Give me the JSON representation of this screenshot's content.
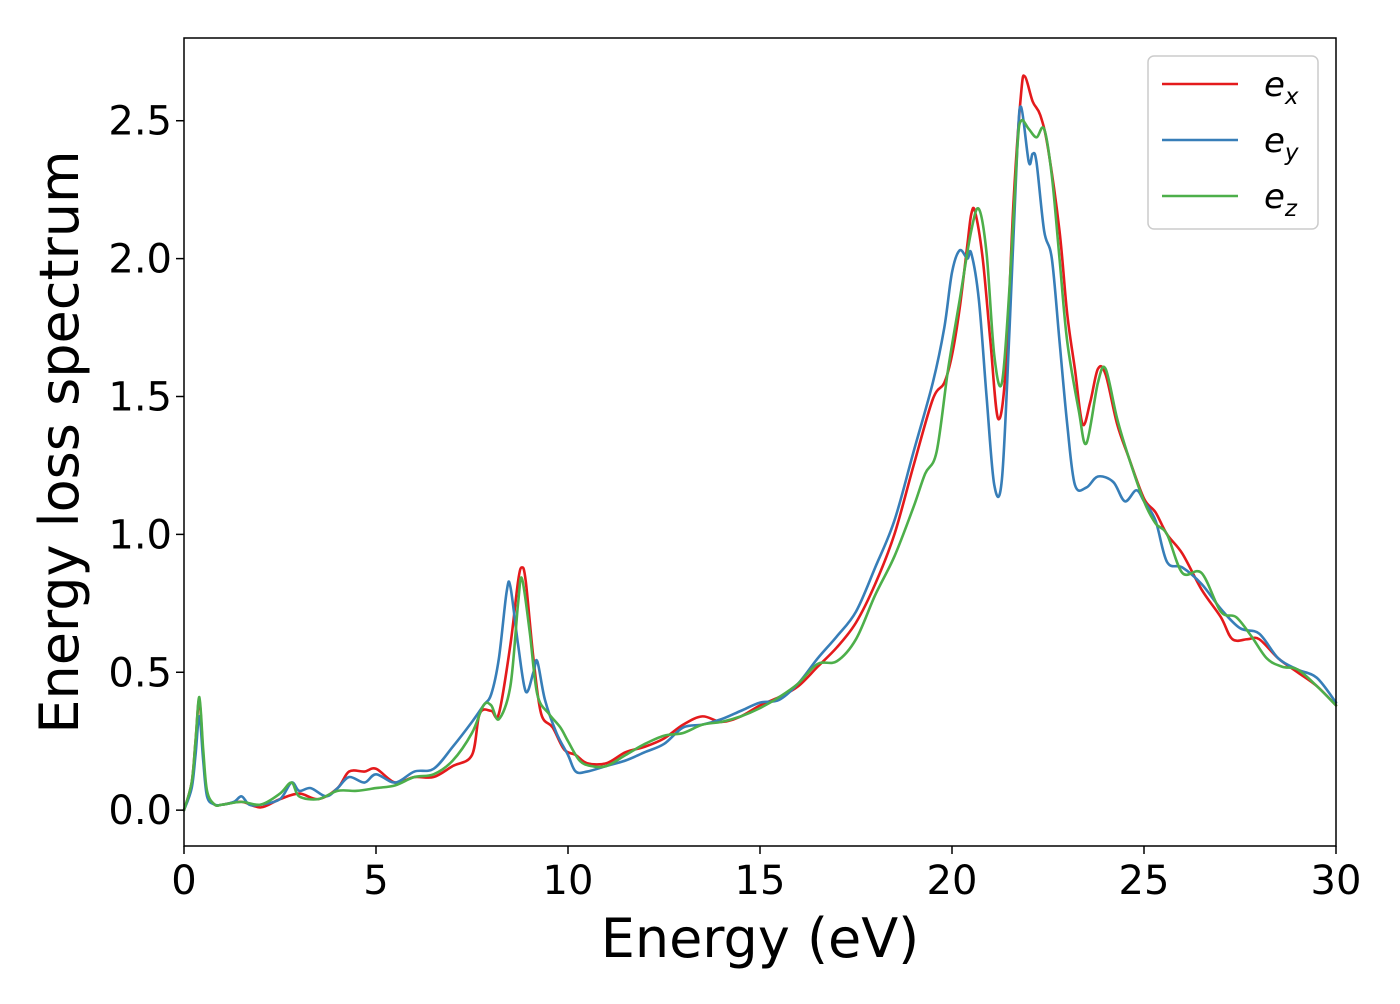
{
  "chart_data": {
    "type": "line",
    "title": "",
    "xlabel": "Energy (eV)",
    "ylabel": "Energy loss spectrum",
    "xlim": [
      0,
      30
    ],
    "ylim": [
      -0.13,
      2.8
    ],
    "xticks": [
      0,
      5,
      10,
      15,
      20,
      25,
      30
    ],
    "yticks": [
      0.0,
      0.5,
      1.0,
      1.5,
      2.0,
      2.5
    ],
    "xtick_labels": [
      "0",
      "5",
      "10",
      "15",
      "20",
      "25",
      "30"
    ],
    "ytick_labels": [
      "0.0",
      "0.5",
      "1.0",
      "1.5",
      "2.0",
      "2.5"
    ],
    "grid": false,
    "legend_position": "top-right",
    "series": [
      {
        "name": "e_x",
        "label_base": "e",
        "label_sub": "x",
        "color": "#e41a1c",
        "points": [
          [
            0.0,
            0.0
          ],
          [
            0.2,
            0.1
          ],
          [
            0.3,
            0.25
          ],
          [
            0.4,
            0.4
          ],
          [
            0.5,
            0.2
          ],
          [
            0.6,
            0.06
          ],
          [
            0.8,
            0.02
          ],
          [
            1.0,
            0.02
          ],
          [
            1.5,
            0.03
          ],
          [
            2.0,
            0.01
          ],
          [
            2.5,
            0.04
          ],
          [
            3.0,
            0.06
          ],
          [
            3.5,
            0.04
          ],
          [
            4.0,
            0.08
          ],
          [
            4.3,
            0.14
          ],
          [
            4.7,
            0.14
          ],
          [
            5.0,
            0.15
          ],
          [
            5.5,
            0.1
          ],
          [
            6.0,
            0.12
          ],
          [
            6.5,
            0.12
          ],
          [
            7.0,
            0.16
          ],
          [
            7.5,
            0.2
          ],
          [
            7.7,
            0.35
          ],
          [
            8.0,
            0.36
          ],
          [
            8.2,
            0.35
          ],
          [
            8.5,
            0.6
          ],
          [
            8.7,
            0.83
          ],
          [
            8.8,
            0.88
          ],
          [
            8.9,
            0.83
          ],
          [
            9.1,
            0.55
          ],
          [
            9.3,
            0.35
          ],
          [
            9.6,
            0.3
          ],
          [
            9.9,
            0.22
          ],
          [
            10.2,
            0.2
          ],
          [
            10.5,
            0.17
          ],
          [
            11.0,
            0.17
          ],
          [
            11.5,
            0.21
          ],
          [
            12.0,
            0.23
          ],
          [
            12.5,
            0.26
          ],
          [
            13.0,
            0.31
          ],
          [
            13.5,
            0.34
          ],
          [
            14.0,
            0.32
          ],
          [
            14.5,
            0.34
          ],
          [
            15.0,
            0.38
          ],
          [
            15.5,
            0.41
          ],
          [
            16.0,
            0.45
          ],
          [
            16.5,
            0.52
          ],
          [
            17.0,
            0.59
          ],
          [
            17.5,
            0.68
          ],
          [
            18.0,
            0.82
          ],
          [
            18.5,
            1.0
          ],
          [
            19.0,
            1.25
          ],
          [
            19.5,
            1.49
          ],
          [
            19.8,
            1.55
          ],
          [
            20.0,
            1.65
          ],
          [
            20.2,
            1.82
          ],
          [
            20.4,
            2.05
          ],
          [
            20.5,
            2.16
          ],
          [
            20.6,
            2.17
          ],
          [
            20.8,
            2.0
          ],
          [
            21.0,
            1.7
          ],
          [
            21.2,
            1.42
          ],
          [
            21.4,
            1.6
          ],
          [
            21.6,
            2.2
          ],
          [
            21.8,
            2.6
          ],
          [
            21.9,
            2.66
          ],
          [
            22.1,
            2.57
          ],
          [
            22.3,
            2.52
          ],
          [
            22.5,
            2.4
          ],
          [
            22.8,
            2.1
          ],
          [
            23.0,
            1.8
          ],
          [
            23.2,
            1.6
          ],
          [
            23.4,
            1.4
          ],
          [
            23.6,
            1.48
          ],
          [
            23.8,
            1.6
          ],
          [
            24.0,
            1.58
          ],
          [
            24.3,
            1.4
          ],
          [
            24.6,
            1.28
          ],
          [
            25.0,
            1.13
          ],
          [
            25.3,
            1.08
          ],
          [
            25.6,
            1.0
          ],
          [
            26.0,
            0.93
          ],
          [
            26.5,
            0.8
          ],
          [
            27.0,
            0.7
          ],
          [
            27.3,
            0.62
          ],
          [
            27.7,
            0.62
          ],
          [
            28.0,
            0.62
          ],
          [
            28.5,
            0.55
          ],
          [
            29.0,
            0.5
          ],
          [
            29.5,
            0.45
          ],
          [
            30.0,
            0.38
          ]
        ]
      },
      {
        "name": "e_y",
        "label_base": "e",
        "label_sub": "y",
        "color": "#377eb8",
        "points": [
          [
            0.0,
            0.0
          ],
          [
            0.2,
            0.08
          ],
          [
            0.3,
            0.2
          ],
          [
            0.4,
            0.34
          ],
          [
            0.5,
            0.18
          ],
          [
            0.6,
            0.05
          ],
          [
            0.8,
            0.02
          ],
          [
            1.0,
            0.02
          ],
          [
            1.3,
            0.03
          ],
          [
            1.5,
            0.05
          ],
          [
            1.7,
            0.02
          ],
          [
            2.0,
            0.02
          ],
          [
            2.5,
            0.04
          ],
          [
            2.8,
            0.1
          ],
          [
            3.0,
            0.07
          ],
          [
            3.3,
            0.08
          ],
          [
            3.7,
            0.05
          ],
          [
            4.0,
            0.08
          ],
          [
            4.3,
            0.12
          ],
          [
            4.7,
            0.1
          ],
          [
            5.0,
            0.13
          ],
          [
            5.5,
            0.1
          ],
          [
            6.0,
            0.14
          ],
          [
            6.5,
            0.15
          ],
          [
            7.0,
            0.23
          ],
          [
            7.5,
            0.32
          ],
          [
            7.8,
            0.38
          ],
          [
            8.0,
            0.42
          ],
          [
            8.2,
            0.55
          ],
          [
            8.4,
            0.79
          ],
          [
            8.5,
            0.81
          ],
          [
            8.7,
            0.6
          ],
          [
            8.9,
            0.43
          ],
          [
            9.1,
            0.5
          ],
          [
            9.2,
            0.54
          ],
          [
            9.4,
            0.4
          ],
          [
            9.7,
            0.28
          ],
          [
            10.0,
            0.2
          ],
          [
            10.2,
            0.14
          ],
          [
            10.5,
            0.14
          ],
          [
            11.0,
            0.16
          ],
          [
            11.5,
            0.18
          ],
          [
            12.0,
            0.21
          ],
          [
            12.5,
            0.24
          ],
          [
            13.0,
            0.3
          ],
          [
            13.5,
            0.31
          ],
          [
            14.0,
            0.33
          ],
          [
            14.5,
            0.36
          ],
          [
            15.0,
            0.39
          ],
          [
            15.5,
            0.4
          ],
          [
            16.0,
            0.46
          ],
          [
            16.5,
            0.55
          ],
          [
            17.0,
            0.63
          ],
          [
            17.5,
            0.72
          ],
          [
            18.0,
            0.88
          ],
          [
            18.5,
            1.05
          ],
          [
            19.0,
            1.3
          ],
          [
            19.5,
            1.55
          ],
          [
            19.8,
            1.75
          ],
          [
            20.0,
            1.95
          ],
          [
            20.2,
            2.03
          ],
          [
            20.4,
            2.0
          ],
          [
            20.5,
            2.02
          ],
          [
            20.7,
            1.85
          ],
          [
            20.9,
            1.5
          ],
          [
            21.1,
            1.18
          ],
          [
            21.3,
            1.2
          ],
          [
            21.5,
            1.75
          ],
          [
            21.7,
            2.4
          ],
          [
            21.8,
            2.55
          ],
          [
            22.0,
            2.35
          ],
          [
            22.1,
            2.38
          ],
          [
            22.2,
            2.35
          ],
          [
            22.4,
            2.1
          ],
          [
            22.6,
            2.0
          ],
          [
            22.8,
            1.7
          ],
          [
            23.0,
            1.4
          ],
          [
            23.2,
            1.18
          ],
          [
            23.5,
            1.17
          ],
          [
            23.8,
            1.21
          ],
          [
            24.2,
            1.19
          ],
          [
            24.5,
            1.12
          ],
          [
            24.8,
            1.16
          ],
          [
            25.0,
            1.12
          ],
          [
            25.3,
            1.05
          ],
          [
            25.6,
            0.9
          ],
          [
            26.0,
            0.88
          ],
          [
            26.5,
            0.82
          ],
          [
            27.0,
            0.73
          ],
          [
            27.5,
            0.66
          ],
          [
            28.0,
            0.64
          ],
          [
            28.5,
            0.55
          ],
          [
            29.0,
            0.51
          ],
          [
            29.5,
            0.48
          ],
          [
            30.0,
            0.39
          ]
        ]
      },
      {
        "name": "e_z",
        "label_base": "e",
        "label_sub": "z",
        "color": "#4daf4a",
        "points": [
          [
            0.0,
            0.0
          ],
          [
            0.2,
            0.1
          ],
          [
            0.3,
            0.25
          ],
          [
            0.4,
            0.41
          ],
          [
            0.5,
            0.22
          ],
          [
            0.6,
            0.07
          ],
          [
            0.8,
            0.02
          ],
          [
            1.0,
            0.02
          ],
          [
            1.5,
            0.03
          ],
          [
            2.0,
            0.02
          ],
          [
            2.5,
            0.06
          ],
          [
            2.8,
            0.1
          ],
          [
            3.0,
            0.05
          ],
          [
            3.5,
            0.04
          ],
          [
            4.0,
            0.07
          ],
          [
            4.5,
            0.07
          ],
          [
            5.0,
            0.08
          ],
          [
            5.5,
            0.09
          ],
          [
            6.0,
            0.12
          ],
          [
            6.5,
            0.13
          ],
          [
            7.0,
            0.18
          ],
          [
            7.5,
            0.28
          ],
          [
            7.8,
            0.38
          ],
          [
            8.0,
            0.38
          ],
          [
            8.2,
            0.33
          ],
          [
            8.5,
            0.45
          ],
          [
            8.7,
            0.75
          ],
          [
            8.8,
            0.84
          ],
          [
            9.0,
            0.65
          ],
          [
            9.2,
            0.42
          ],
          [
            9.5,
            0.35
          ],
          [
            9.8,
            0.3
          ],
          [
            10.0,
            0.25
          ],
          [
            10.3,
            0.18
          ],
          [
            10.6,
            0.16
          ],
          [
            11.0,
            0.16
          ],
          [
            11.5,
            0.2
          ],
          [
            12.0,
            0.24
          ],
          [
            12.5,
            0.27
          ],
          [
            13.0,
            0.28
          ],
          [
            13.5,
            0.31
          ],
          [
            14.0,
            0.32
          ],
          [
            14.5,
            0.34
          ],
          [
            15.0,
            0.37
          ],
          [
            15.5,
            0.41
          ],
          [
            16.0,
            0.46
          ],
          [
            16.5,
            0.53
          ],
          [
            17.0,
            0.54
          ],
          [
            17.5,
            0.62
          ],
          [
            18.0,
            0.78
          ],
          [
            18.5,
            0.92
          ],
          [
            19.0,
            1.1
          ],
          [
            19.3,
            1.22
          ],
          [
            19.6,
            1.3
          ],
          [
            19.9,
            1.6
          ],
          [
            20.2,
            1.85
          ],
          [
            20.5,
            2.1
          ],
          [
            20.7,
            2.18
          ],
          [
            20.9,
            2.02
          ],
          [
            21.1,
            1.65
          ],
          [
            21.3,
            1.55
          ],
          [
            21.5,
            1.9
          ],
          [
            21.7,
            2.4
          ],
          [
            21.8,
            2.5
          ],
          [
            22.0,
            2.47
          ],
          [
            22.2,
            2.44
          ],
          [
            22.4,
            2.47
          ],
          [
            22.6,
            2.3
          ],
          [
            22.8,
            2.0
          ],
          [
            23.0,
            1.7
          ],
          [
            23.3,
            1.45
          ],
          [
            23.5,
            1.33
          ],
          [
            23.8,
            1.55
          ],
          [
            24.0,
            1.6
          ],
          [
            24.3,
            1.42
          ],
          [
            24.6,
            1.28
          ],
          [
            25.0,
            1.12
          ],
          [
            25.3,
            1.04
          ],
          [
            25.6,
            1.0
          ],
          [
            26.0,
            0.86
          ],
          [
            26.5,
            0.86
          ],
          [
            27.0,
            0.72
          ],
          [
            27.4,
            0.7
          ],
          [
            27.8,
            0.63
          ],
          [
            28.2,
            0.55
          ],
          [
            28.6,
            0.52
          ],
          [
            29.0,
            0.51
          ],
          [
            29.5,
            0.45
          ],
          [
            30.0,
            0.38
          ]
        ]
      }
    ]
  }
}
